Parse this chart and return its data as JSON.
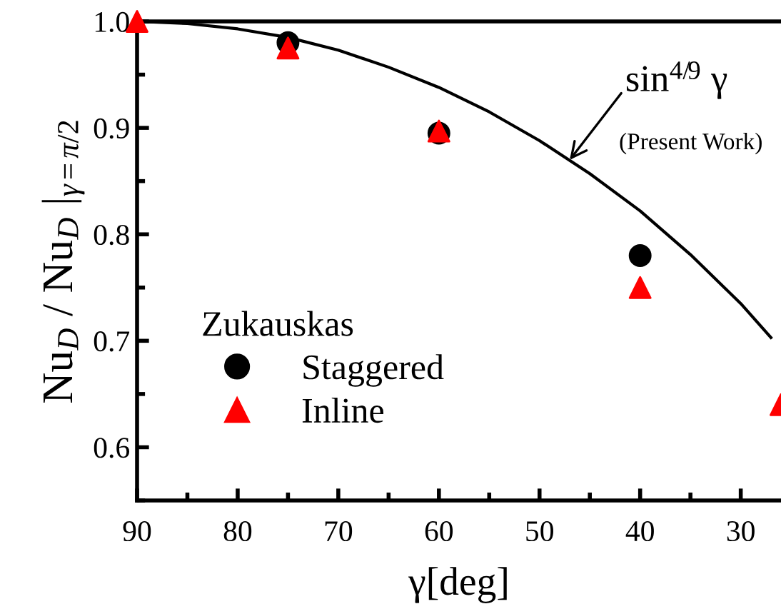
{
  "chart_data": {
    "type": "scatter",
    "xlabel": "γ[deg]",
    "ylabel": "Nu$_{D}$ / Nu$_{D}$ |$_{γ=π/2}$",
    "x": [
      90,
      75,
      60,
      40,
      26
    ],
    "series": [
      {
        "name": "Staggered",
        "marker": "circle",
        "color": "#000000",
        "values": [
          null,
          0.98,
          0.895,
          0.78,
          null
        ]
      },
      {
        "name": "Inline",
        "marker": "triangle",
        "color": "#ff0000",
        "values": [
          1.0,
          0.975,
          0.897,
          0.75,
          0.64
        ]
      },
      {
        "type": "line",
        "color": "#000000",
        "line_style": "solid",
        "x": [
          90,
          85,
          80,
          75,
          70,
          65,
          60,
          55,
          50,
          45,
          40,
          35,
          30,
          27
        ],
        "values": [
          1.0,
          0.998,
          0.993,
          0.985,
          0.973,
          0.957,
          0.938,
          0.915,
          0.888,
          0.857,
          0.822,
          0.781,
          0.735,
          0.703
        ]
      }
    ],
    "legend_title": "Zukauskas",
    "legend": "bottom left",
    "annotations": [
      {
        "text": "sin$^{4/9}$ γ",
        "x": 47,
        "y": 0.87
      },
      "(Present Work)"
    ],
    "xlim": [
      90,
      26
    ],
    "xticks": [
      90,
      80,
      70,
      60,
      50,
      40,
      30
    ],
    "ylim": [
      0.55,
      1.0
    ],
    "yticks": [
      {
        "value": 0.6,
        "label": "0.6"
      },
      {
        "value": 0.7,
        "label": "0.7"
      },
      {
        "value": 0.8,
        "label": "0.8"
      },
      {
        "value": 0.9,
        "label": "0.9"
      },
      {
        "value": 1.0,
        "label": "1.0"
      }
    ],
    "grid": false
  }
}
